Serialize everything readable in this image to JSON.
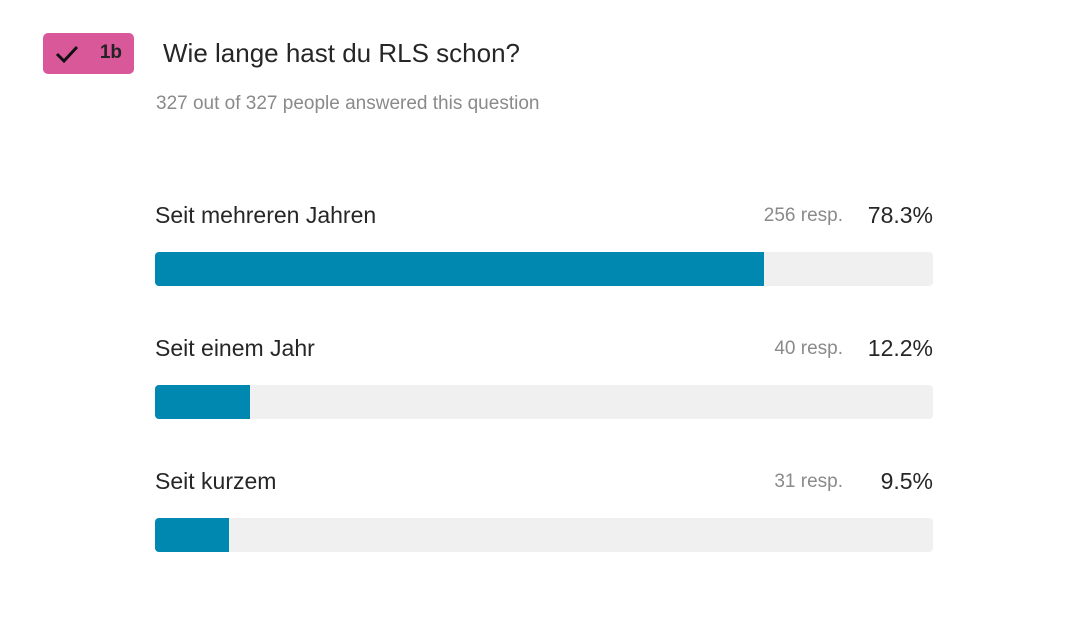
{
  "badge": "1b",
  "question": {
    "title": "Wie lange hast du RLS schon?",
    "subtitle": "327 out of 327 people answered this question"
  },
  "answers": [
    {
      "label": "Seit mehreren Jahren",
      "responses": "256 resp.",
      "percent": {
        "value": 78.3,
        "label": "78.3%"
      }
    },
    {
      "label": "Seit einem Jahr",
      "responses": "40 resp.",
      "percent": {
        "value": 12.2,
        "label": "12.2%"
      }
    },
    {
      "label": "Seit kurzem",
      "responses": "31 resp.",
      "percent": {
        "value": 9.5,
        "label": "9.5%"
      }
    }
  ]
}
